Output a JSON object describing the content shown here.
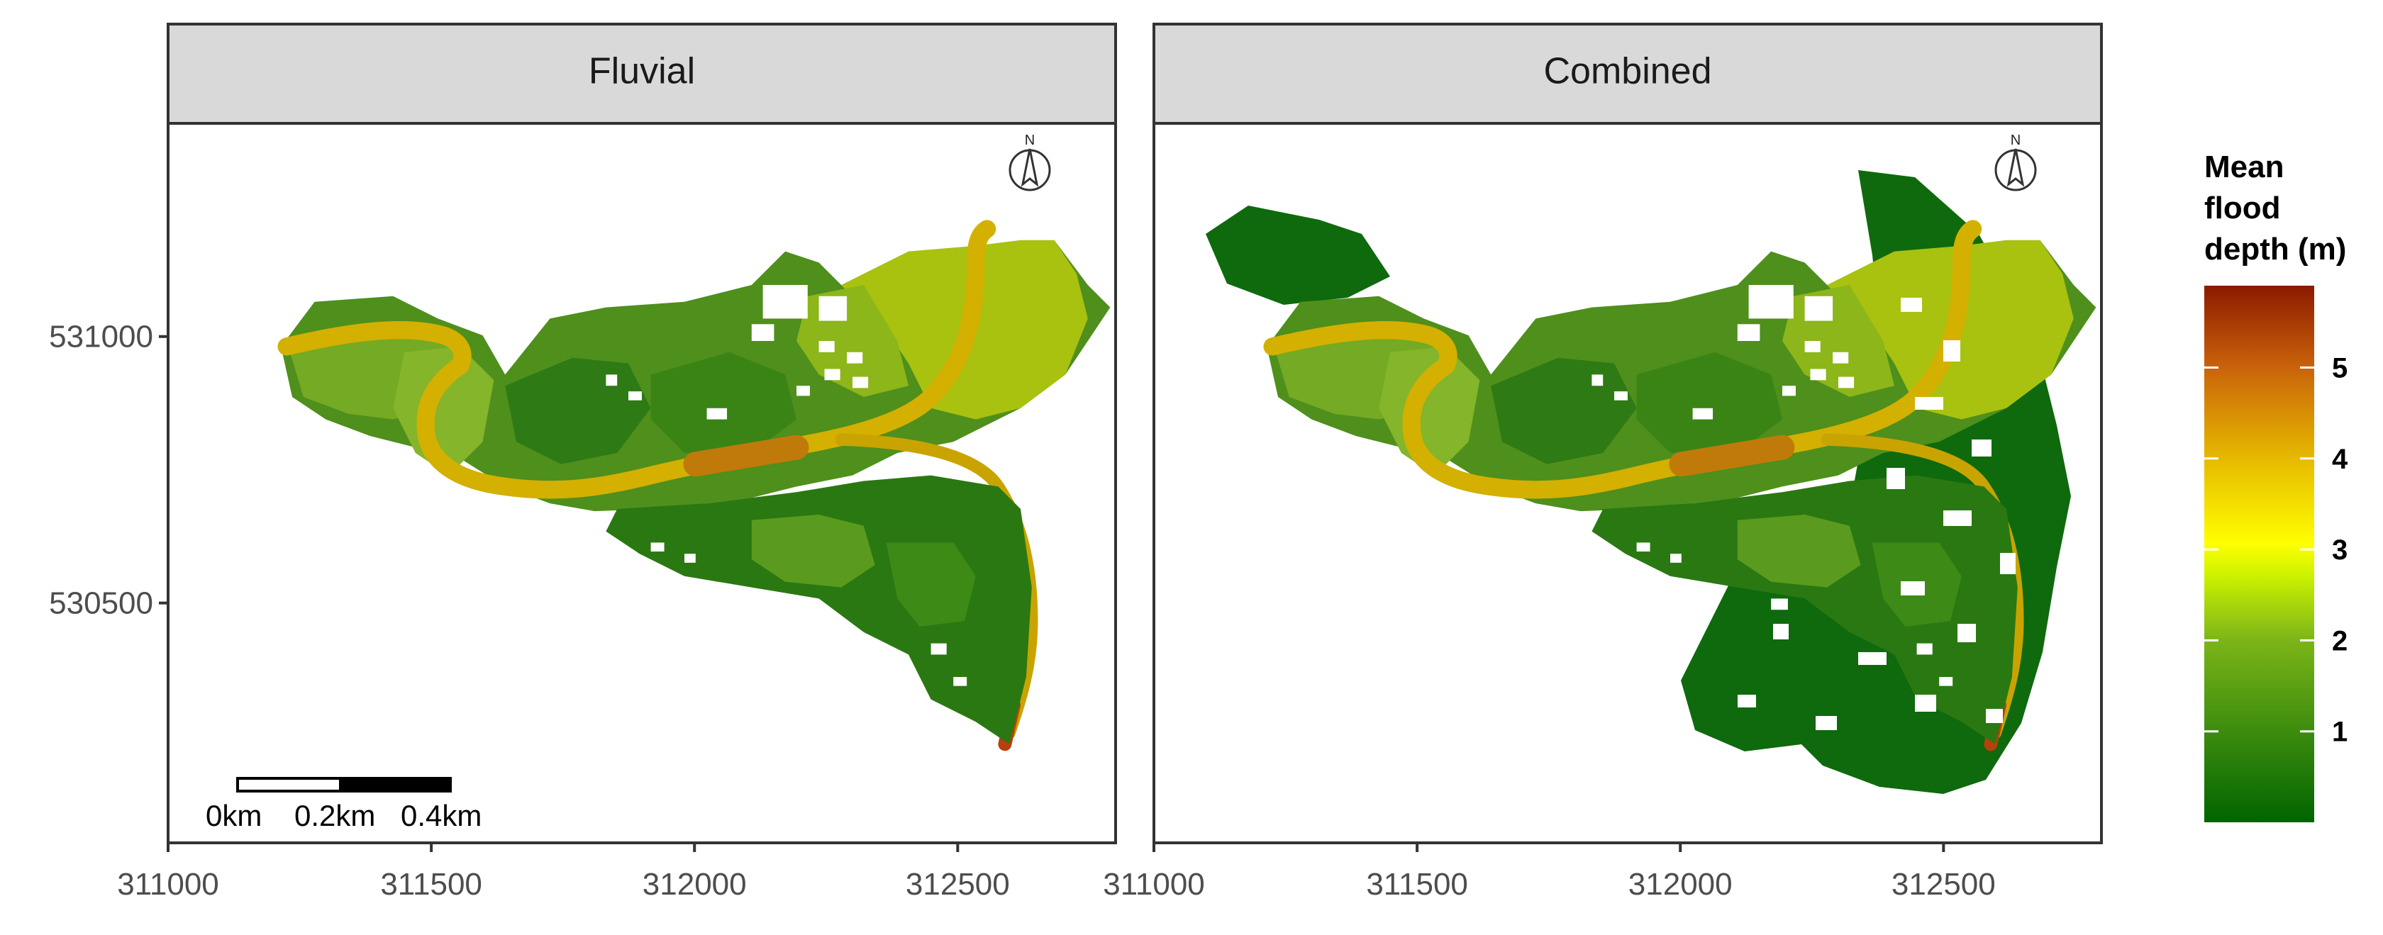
{
  "panels": [
    {
      "id": "fluvial",
      "title": "Fluvial",
      "extent": "fluvial"
    },
    {
      "id": "combined",
      "title": "Combined",
      "extent": "combined"
    }
  ],
  "x_axis": {
    "ticks": [
      311000,
      311500,
      312000,
      312500
    ],
    "labels": [
      "311000",
      "311500",
      "312000",
      "312500"
    ],
    "limits": [
      311000,
      312800
    ]
  },
  "y_axis": {
    "ticks": [
      531000,
      530500
    ],
    "labels": [
      "531000",
      "530500"
    ],
    "limits": [
      530050,
      531400
    ]
  },
  "legend": {
    "title": [
      "Mean",
      "flood",
      "depth (m)"
    ],
    "ticks": [
      1,
      2,
      3,
      4,
      5
    ],
    "tick_labels": [
      "1",
      "2",
      "3",
      "4",
      "5"
    ],
    "range": [
      0,
      5.9
    ],
    "colors": [
      "#006400",
      "#3d8c0e",
      "#7cb518",
      "#ccf200",
      "#ffff00",
      "#e6b800",
      "#c8620a",
      "#8b1a00"
    ]
  },
  "scalebar": {
    "labels": [
      "0km",
      "0.2km",
      "0.4km"
    ]
  },
  "north_arrow": {
    "label": "N"
  },
  "colors": {
    "panel_border": "#333333",
    "strip_fill": "#d9d9d9",
    "deep_green": "#116e0f",
    "mid_green": "#4b8f1b",
    "light_green": "#86b52a",
    "lime": "#a8c20f",
    "river": "#d4b000",
    "river_deep": "#c07a0a",
    "river_max": "#b8400c"
  }
}
